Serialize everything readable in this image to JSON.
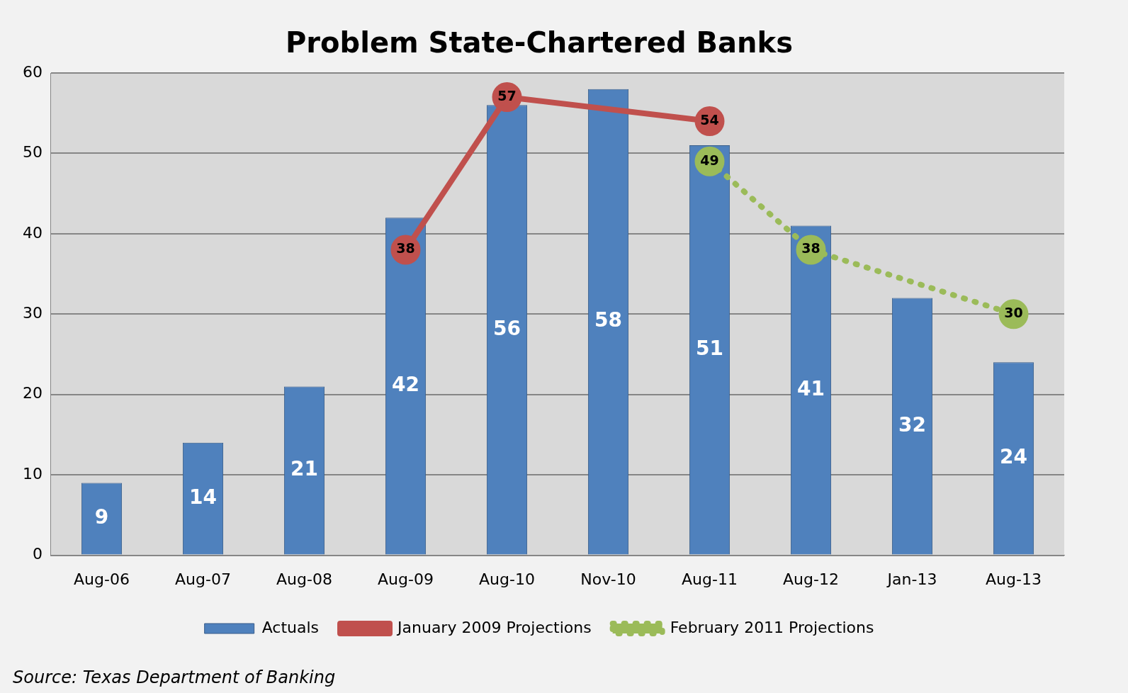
{
  "chart_data": {
    "type": "bar",
    "title": "Problem State-Chartered Banks",
    "categories": [
      "Aug-06",
      "Aug-07",
      "Aug-08",
      "Aug-09",
      "Aug-10",
      "Nov-10",
      "Aug-11",
      "Aug-12",
      "Jan-13",
      "Aug-13"
    ],
    "series": [
      {
        "name": "Actuals",
        "color": "#4f81bd",
        "values": [
          9,
          14,
          21,
          42,
          56,
          58,
          51,
          41,
          32,
          24
        ]
      },
      {
        "name": "January 2009 Projections",
        "type": "line",
        "color": "#c0504d",
        "line_style": "solid",
        "values": [
          null,
          null,
          null,
          38,
          57,
          null,
          54,
          null,
          null,
          null
        ]
      },
      {
        "name": "February 2011 Projections",
        "type": "line",
        "color": "#9bbb59",
        "line_style": "dotted",
        "values": [
          null,
          null,
          null,
          null,
          null,
          null,
          49,
          38,
          null,
          30
        ]
      }
    ],
    "ylim": [
      0,
      60
    ],
    "yticks": [
      0,
      10,
      20,
      30,
      40,
      50,
      60
    ],
    "grid": "y",
    "legend": "bottom",
    "marker": "circle",
    "data_labels": true,
    "annotations": [
      "Source: Texas Department of Banking"
    ]
  }
}
